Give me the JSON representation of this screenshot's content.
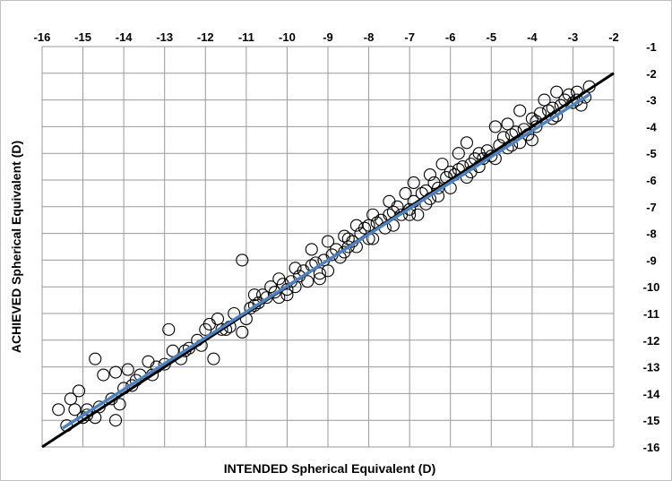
{
  "chart_data": {
    "type": "scatter",
    "title": "",
    "xlabel": "INTENDED Spherical Equivalent (D)",
    "ylabel": "ACHIEVED Spherical Equivalent (D)",
    "xlim": [
      -16,
      -2
    ],
    "ylim": [
      -16,
      -1
    ],
    "x_ticks": [
      "-16",
      "-15",
      "-14",
      "-13",
      "-12",
      "-11",
      "-10",
      "-9",
      "-8",
      "-7",
      "-6",
      "-5",
      "-4",
      "-3",
      "-2"
    ],
    "y_ticks": [
      "-1",
      "-2",
      "-3",
      "-4",
      "-5",
      "-6",
      "-7",
      "-8",
      "-9",
      "-10",
      "-11",
      "-12",
      "-13",
      "-14",
      "-15",
      "-16"
    ],
    "x_axis_position": "top",
    "y_axis_position": "right",
    "grid": true,
    "marker": "open-circle",
    "lines": [
      {
        "role": "identity",
        "color": "#000000",
        "points": [
          [
            -16,
            -16
          ],
          [
            -2,
            -2
          ]
        ]
      },
      {
        "role": "regression",
        "color": "#4f81bd",
        "points": [
          [
            -15.5,
            -15.3
          ],
          [
            -2.6,
            -2.8
          ]
        ]
      }
    ],
    "points": [
      [
        -15.6,
        -14.6
      ],
      [
        -15.3,
        -14.2
      ],
      [
        -15.1,
        -13.9
      ],
      [
        -14.7,
        -12.7
      ],
      [
        -14.5,
        -13.3
      ],
      [
        -14.9,
        -14.8
      ],
      [
        -14.7,
        -14.9
      ],
      [
        -14.2,
        -15.0
      ],
      [
        -14.3,
        -14.2
      ],
      [
        -14.1,
        -14.4
      ],
      [
        -15.2,
        -14.6
      ],
      [
        -14.9,
        -14.6
      ],
      [
        -14.2,
        -13.2
      ],
      [
        -13.9,
        -13.1
      ],
      [
        -13.6,
        -13.3
      ],
      [
        -12.9,
        -11.6
      ],
      [
        -12.4,
        -12.3
      ],
      [
        -12.0,
        -11.6
      ],
      [
        -11.8,
        -12.7
      ],
      [
        -11.1,
        -9.0
      ],
      [
        -11.6,
        -11.6
      ],
      [
        -11.4,
        -11.5
      ],
      [
        -11.1,
        -11.7
      ],
      [
        -10.8,
        -10.3
      ],
      [
        -10.4,
        -10.0
      ],
      [
        -10.2,
        -9.7
      ],
      [
        -9.8,
        -9.3
      ],
      [
        -9.4,
        -8.6
      ],
      [
        -9.0,
        -8.3
      ],
      [
        -9.2,
        -9.7
      ],
      [
        -8.6,
        -8.1
      ],
      [
        -8.3,
        -7.7
      ],
      [
        -8.5,
        -8.5
      ],
      [
        -7.9,
        -7.3
      ],
      [
        -7.5,
        -6.8
      ],
      [
        -7.1,
        -6.5
      ],
      [
        -6.9,
        -6.1
      ],
      [
        -6.8,
        -7.3
      ],
      [
        -6.5,
        -5.8
      ],
      [
        -6.2,
        -5.4
      ],
      [
        -5.8,
        -5.0
      ],
      [
        -5.6,
        -4.6
      ],
      [
        -5.5,
        -5.7
      ],
      [
        -4.9,
        -4.0
      ],
      [
        -4.6,
        -3.9
      ],
      [
        -4.3,
        -3.4
      ],
      [
        -4.1,
        -4.3
      ],
      [
        -3.7,
        -3.0
      ],
      [
        -3.4,
        -2.7
      ],
      [
        -3.1,
        -2.8
      ],
      [
        -2.9,
        -2.7
      ],
      [
        -2.6,
        -2.5
      ],
      [
        -2.8,
        -3.2
      ],
      [
        -3.5,
        -3.7
      ],
      [
        -4.0,
        -4.5
      ],
      [
        -5.2,
        -5.2
      ],
      [
        -6.0,
        -6.3
      ],
      [
        -7.0,
        -7.3
      ],
      [
        -8.0,
        -8.2
      ],
      [
        -10.0,
        -10.1
      ],
      [
        -12.6,
        -12.7
      ],
      [
        -13.0,
        -12.9
      ],
      [
        -13.4,
        -12.8
      ],
      [
        -13.2,
        -13.0
      ],
      [
        -12.8,
        -12.4
      ],
      [
        -12.2,
        -12.0
      ],
      [
        -11.9,
        -11.4
      ],
      [
        -11.7,
        -11.2
      ],
      [
        -11.3,
        -11.0
      ],
      [
        -10.9,
        -10.8
      ],
      [
        -10.7,
        -10.6
      ],
      [
        -10.5,
        -10.4
      ],
      [
        -10.3,
        -10.2
      ],
      [
        -10.1,
        -9.9
      ],
      [
        -9.9,
        -9.8
      ],
      [
        -9.7,
        -9.6
      ],
      [
        -9.6,
        -9.4
      ],
      [
        -9.3,
        -9.1
      ],
      [
        -9.1,
        -9.0
      ],
      [
        -8.9,
        -8.8
      ],
      [
        -8.8,
        -8.6
      ],
      [
        -8.7,
        -8.9
      ],
      [
        -8.4,
        -8.3
      ],
      [
        -8.2,
        -8.0
      ],
      [
        -8.1,
        -7.8
      ],
      [
        -7.8,
        -7.6
      ],
      [
        -7.7,
        -7.5
      ],
      [
        -7.6,
        -7.8
      ],
      [
        -7.4,
        -7.2
      ],
      [
        -7.3,
        -7.0
      ],
      [
        -7.2,
        -7.3
      ],
      [
        -6.7,
        -6.5
      ],
      [
        -6.6,
        -6.4
      ],
      [
        -6.4,
        -6.1
      ],
      [
        -6.3,
        -6.3
      ],
      [
        -6.1,
        -5.9
      ],
      [
        -5.9,
        -5.8
      ],
      [
        -5.7,
        -5.5
      ],
      [
        -5.4,
        -5.2
      ],
      [
        -5.3,
        -5.0
      ],
      [
        -5.1,
        -4.9
      ],
      [
        -5.0,
        -5.1
      ],
      [
        -4.8,
        -4.7
      ],
      [
        -4.7,
        -4.4
      ],
      [
        -4.5,
        -4.3
      ],
      [
        -4.4,
        -4.2
      ],
      [
        -4.2,
        -4.1
      ],
      [
        -3.9,
        -3.8
      ],
      [
        -3.8,
        -3.5
      ],
      [
        -3.6,
        -3.4
      ],
      [
        -3.3,
        -3.2
      ],
      [
        -3.2,
        -3.0
      ],
      [
        -3.0,
        -3.1
      ],
      [
        -2.7,
        -2.9
      ],
      [
        -9.5,
        -9.8
      ],
      [
        -9.0,
        -9.4
      ],
      [
        -8.6,
        -8.7
      ],
      [
        -7.9,
        -8.2
      ],
      [
        -7.0,
        -7.1
      ],
      [
        -6.6,
        -6.9
      ],
      [
        -6.0,
        -5.7
      ],
      [
        -5.6,
        -5.9
      ],
      [
        -4.9,
        -5.2
      ],
      [
        -4.3,
        -4.6
      ],
      [
        -3.9,
        -4.0
      ],
      [
        -11.0,
        -11.2
      ],
      [
        -10.6,
        -10.3
      ],
      [
        -10.2,
        -10.4
      ],
      [
        -9.8,
        -10.0
      ],
      [
        -9.4,
        -9.2
      ],
      [
        -8.5,
        -8.2
      ],
      [
        -8.0,
        -7.7
      ],
      [
        -7.5,
        -7.3
      ],
      [
        -6.9,
        -6.8
      ],
      [
        -6.3,
        -6.6
      ],
      [
        -5.8,
        -5.6
      ],
      [
        -5.3,
        -5.5
      ],
      [
        -4.6,
        -4.8
      ],
      [
        -4.0,
        -3.7
      ],
      [
        -3.5,
        -3.3
      ],
      [
        -12.5,
        -12.4
      ],
      [
        -12.1,
        -12.2
      ],
      [
        -11.5,
        -11.6
      ],
      [
        -13.8,
        -13.7
      ],
      [
        -14.0,
        -13.8
      ],
      [
        -15.4,
        -15.2
      ],
      [
        -15.0,
        -14.9
      ],
      [
        -14.6,
        -14.5
      ],
      [
        -13.7,
        -13.5
      ],
      [
        -13.3,
        -13.3
      ],
      [
        -10.8,
        -10.7
      ],
      [
        -10.0,
        -10.3
      ],
      [
        -9.2,
        -9.5
      ],
      [
        -8.3,
        -8.5
      ],
      [
        -7.4,
        -7.7
      ],
      [
        -6.5,
        -6.7
      ],
      [
        -5.5,
        -5.4
      ],
      [
        -4.5,
        -4.7
      ],
      [
        -3.4,
        -3.6
      ],
      [
        -2.9,
        -3.0
      ]
    ]
  }
}
